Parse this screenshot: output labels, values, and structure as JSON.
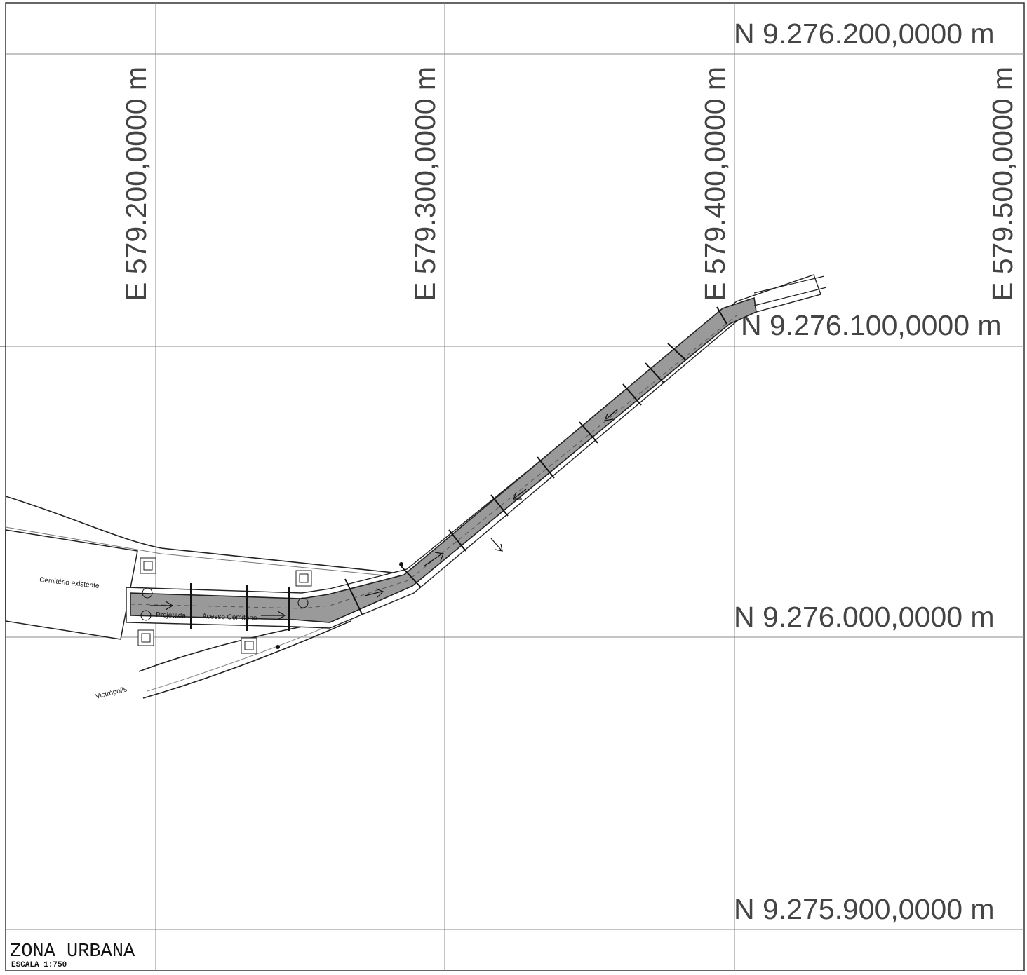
{
  "grid_labels": {
    "easting": [
      "E 579.200,0000 m",
      "E 579.300,0000 m",
      "E 579.400,0000 m",
      "E 579.500,0000 m"
    ],
    "northing": [
      "N 9.276.200,0000 m",
      "N 9.276.100,0000 m",
      "N 9.276.000,0000 m",
      "N 9.275.900,0000 m"
    ]
  },
  "map_labels": {
    "cemetery": "Cemitério existente",
    "road_name_1": "Projetada",
    "road_name_2": "Acesso Cemitério",
    "place": "Vistrópolis"
  },
  "title_block": {
    "title": "ZONA URBANA",
    "scale": "ESCALA 1:750"
  },
  "colors": {
    "road": "#9a9a9a",
    "grid": "#8a8a8a",
    "ink": "#222222"
  }
}
